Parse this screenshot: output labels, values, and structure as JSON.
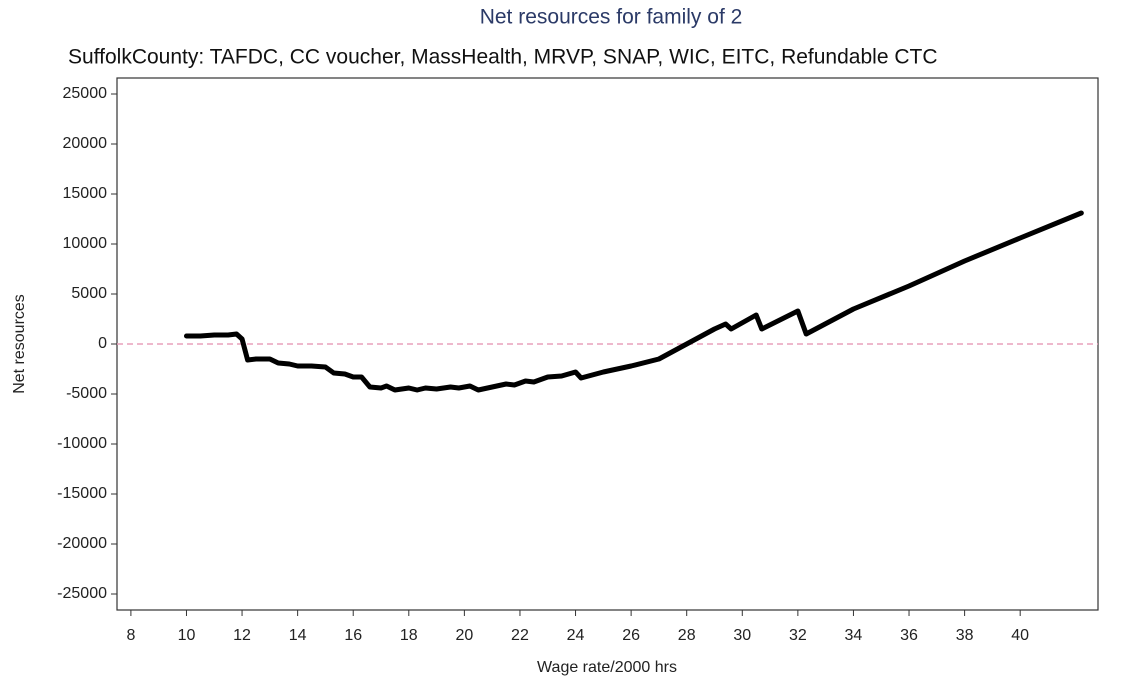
{
  "chart_data": {
    "type": "line",
    "title": "Net resources for family of 2",
    "subtitle": "SuffolkCounty: TAFDC, CC voucher, MassHealth, MRVP, SNAP, WIC, EITC, Refundable CTC",
    "xlabel": "Wage rate/2000 hrs",
    "ylabel": "Net resources",
    "x": [
      10,
      10.5,
      11,
      11.5,
      11.8,
      12.0,
      12.2,
      12.5,
      13.0,
      13.3,
      13.7,
      14.0,
      14.5,
      15.0,
      15.3,
      15.7,
      16.0,
      16.3,
      16.6,
      17.0,
      17.2,
      17.5,
      18.0,
      18.3,
      18.6,
      19.0,
      19.5,
      19.8,
      20.2,
      20.5,
      21.0,
      21.5,
      21.8,
      22.2,
      22.5,
      23.0,
      23.5,
      24.0,
      24.2,
      25.0,
      26.0,
      27.0,
      28.0,
      29.0,
      29.4,
      29.6,
      30.5,
      30.7,
      32.0,
      32.3,
      34.0,
      36.0,
      38.0,
      40.0,
      42.2
    ],
    "values": [
      800,
      800,
      900,
      900,
      1000,
      500,
      -1600,
      -1500,
      -1500,
      -1900,
      -2000,
      -2200,
      -2200,
      -2300,
      -2900,
      -3000,
      -3300,
      -3300,
      -4300,
      -4400,
      -4200,
      -4600,
      -4400,
      -4600,
      -4400,
      -4500,
      -4300,
      -4400,
      -4200,
      -4600,
      -4300,
      -4000,
      -4100,
      -3700,
      -3800,
      -3300,
      -3200,
      -2800,
      -3400,
      -2800,
      -2200,
      -1500,
      0,
      1500,
      2000,
      1500,
      2900,
      1500,
      3300,
      1000,
      3500,
      5800,
      8300,
      10600,
      13100
    ],
    "color": "#000000",
    "reference_line": 0,
    "reference_color": "#e8a0bc",
    "xlim": [
      7.5,
      42.8
    ],
    "ylim": [
      -26600,
      26600
    ],
    "xticks": [
      8,
      10,
      12,
      14,
      16,
      18,
      20,
      22,
      24,
      26,
      28,
      30,
      32,
      34,
      36,
      38,
      40
    ],
    "yticks": [
      -25000,
      -20000,
      -15000,
      -10000,
      -5000,
      0,
      5000,
      10000,
      15000,
      20000,
      25000
    ]
  }
}
